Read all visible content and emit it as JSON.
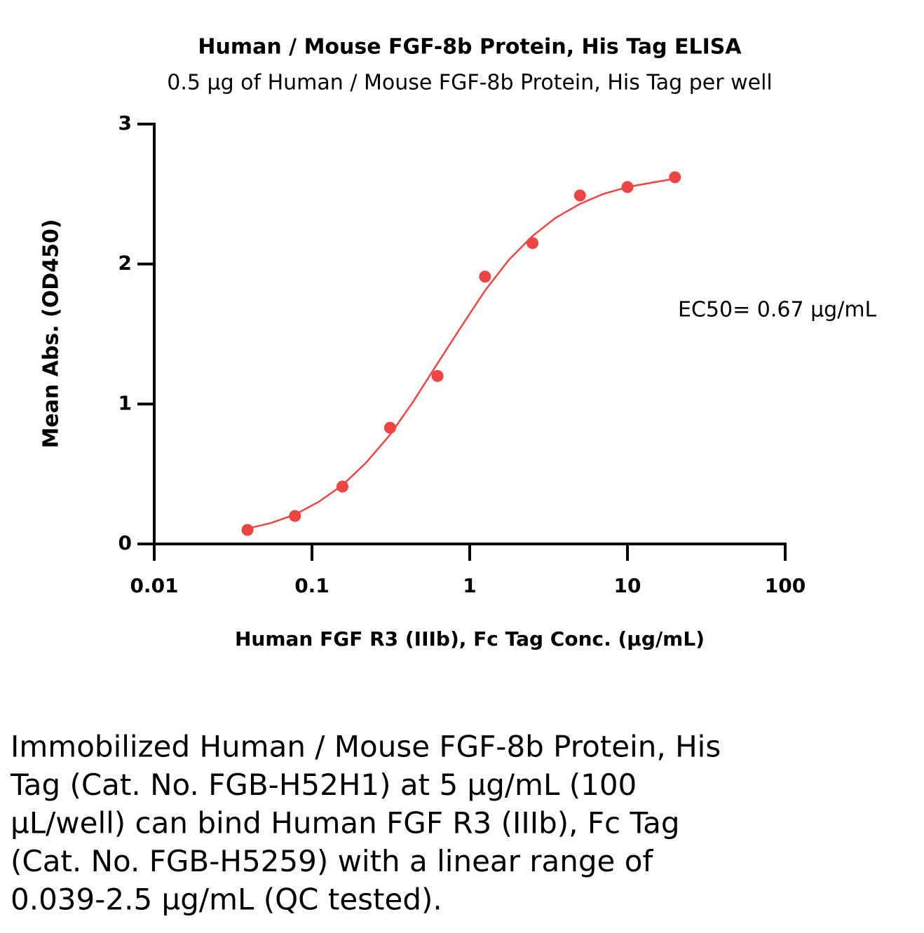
{
  "chart_data": {
    "type": "scatter",
    "title": "Human / Mouse FGF-8b Protein, His Tag ELISA",
    "subtitle": "0.5 µg of Human / Mouse FGF-8b Protein, His Tag per well",
    "x_label": "Human FGF R3 (IIIb), Fc Tag Conc. (µg/mL)",
    "y_label": "Mean Abs. (OD450)",
    "annotation": "EC50= 0.67 µg/mL",
    "x_scale": "log",
    "xlim": [
      0.01,
      100
    ],
    "xticks": [
      0.01,
      0.1,
      1,
      10,
      100
    ],
    "ylim": [
      0,
      3
    ],
    "yticks": [
      0,
      1,
      2,
      3
    ],
    "grid": false,
    "color": "#ef4444",
    "x": [
      0.039,
      0.078,
      0.156,
      0.3125,
      0.625,
      1.25,
      2.5,
      5,
      10,
      20
    ],
    "values": [
      0.1,
      0.2,
      0.41,
      0.83,
      1.2,
      1.91,
      2.15,
      2.49,
      2.55,
      2.62
    ],
    "curve": {
      "x": [
        0.039,
        0.055,
        0.078,
        0.11,
        0.156,
        0.22,
        0.3125,
        0.44,
        0.625,
        0.88,
        1.25,
        1.77,
        2.5,
        3.5,
        5,
        7,
        10,
        14,
        20
      ],
      "values": [
        0.11,
        0.15,
        0.21,
        0.3,
        0.42,
        0.58,
        0.78,
        1.02,
        1.29,
        1.55,
        1.81,
        2.03,
        2.2,
        2.33,
        2.43,
        2.5,
        2.55,
        2.58,
        2.61
      ]
    },
    "caption_lines": [
      "Immobilized Human / Mouse FGF-8b Protein, His",
      "Tag (Cat. No. FGB-H52H1) at 5 µg/mL (100",
      "µL/well) can bind Human FGF R3 (IIIb), Fc Tag",
      "(Cat. No. FGB-H5259) with a linear range of",
      "0.039-2.5 µg/mL (QC tested)."
    ]
  }
}
